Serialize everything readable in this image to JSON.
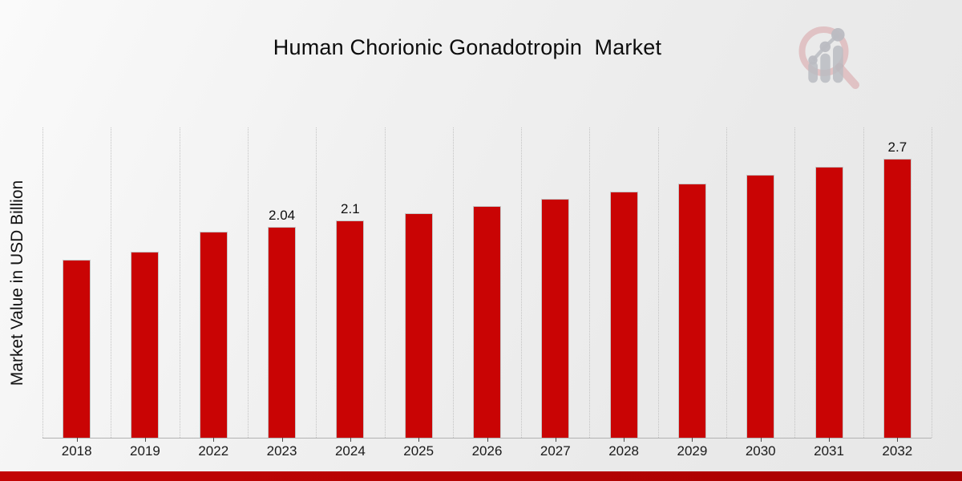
{
  "header": {
    "title": "Human Chorionic Gonadotropin  Market"
  },
  "axes": {
    "y_label": "Market Value in USD Billion"
  },
  "chart_data": {
    "type": "bar",
    "title": "Human Chorionic Gonadotropin  Market",
    "xlabel": "",
    "ylabel": "Market Value in USD Billion",
    "categories": [
      "2018",
      "2019",
      "2022",
      "2023",
      "2024",
      "2025",
      "2026",
      "2027",
      "2028",
      "2029",
      "2030",
      "2031",
      "2032"
    ],
    "values": [
      1.72,
      1.8,
      1.99,
      2.04,
      2.1,
      2.17,
      2.24,
      2.31,
      2.38,
      2.46,
      2.54,
      2.62,
      2.7
    ],
    "data_labels": [
      "",
      "",
      "",
      "2.04",
      "2.1",
      "",
      "",
      "",
      "",
      "",
      "",
      "",
      "2.7"
    ],
    "ylim": [
      0,
      3
    ],
    "grid": "vertical dotted lines between categories",
    "legend_position": "none",
    "bar_color": "#c90404",
    "bar_edge_color": "#c6c6c6"
  },
  "footer": {
    "banner_color": "#b30303"
  },
  "logo": {
    "name": "magnifier-bar-chart-watermark",
    "ring_color": "rgba(198,90,97,0.28)",
    "glyph_color": "rgba(186,188,194,0.85)"
  }
}
